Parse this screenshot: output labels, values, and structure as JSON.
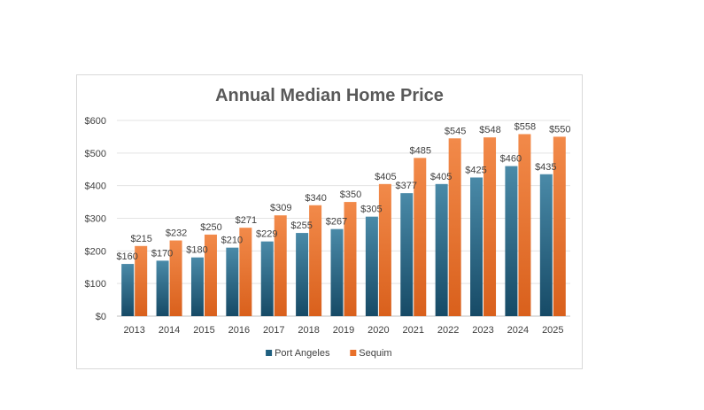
{
  "chart_data": {
    "type": "bar",
    "title": "Annual Median Home Price",
    "xlabel": "",
    "ylabel": "",
    "categories": [
      "2013",
      "2014",
      "2015",
      "2016",
      "2017",
      "2018",
      "2019",
      "2020",
      "2021",
      "2022",
      "2023",
      "2024",
      "2025"
    ],
    "series": [
      {
        "name": "Port Angeles",
        "color": "#1f5f7f",
        "values": [
          160,
          170,
          180,
          210,
          229,
          255,
          267,
          305,
          377,
          405,
          425,
          460,
          435
        ]
      },
      {
        "name": "Sequim",
        "color": "#e8702a",
        "values": [
          215,
          232,
          250,
          271,
          309,
          340,
          350,
          405,
          485,
          545,
          548,
          558,
          550
        ]
      }
    ],
    "ylim": [
      0,
      600
    ],
    "yticks": [
      0,
      100,
      200,
      300,
      400,
      500,
      600
    ],
    "ytick_labels": [
      "$0",
      "$100",
      "$200",
      "$300",
      "$400",
      "$500",
      "$600"
    ],
    "value_prefix": "$",
    "grid": true,
    "legend": "bottom"
  }
}
